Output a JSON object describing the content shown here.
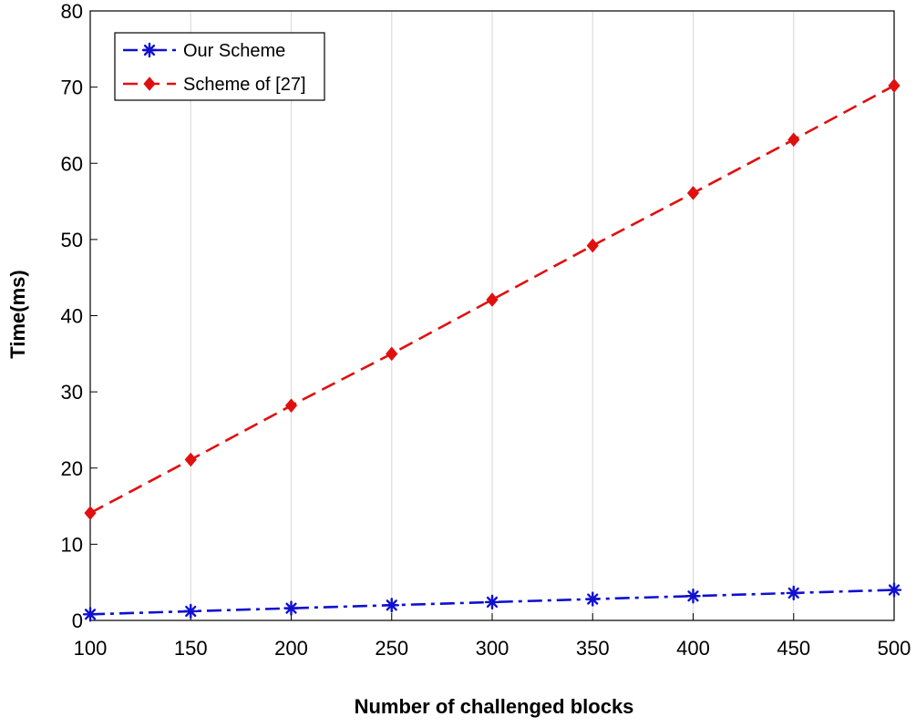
{
  "chart_data": {
    "type": "line",
    "title": "",
    "xlabel": "Number of challenged blocks",
    "ylabel": "Time(ms)",
    "x": [
      100,
      150,
      200,
      250,
      300,
      350,
      400,
      450,
      500
    ],
    "xlim": [
      100,
      500
    ],
    "ylim": [
      0,
      80
    ],
    "xticks": [
      100,
      150,
      200,
      250,
      300,
      350,
      400,
      450,
      500
    ],
    "yticks": [
      0,
      10,
      20,
      30,
      40,
      50,
      60,
      70,
      80
    ],
    "grid": "vertical",
    "legend_position": "top-left",
    "series": [
      {
        "name": "Our Scheme",
        "color": "#1010d0",
        "line_style": "dash-dot",
        "marker": "asterisk",
        "values": [
          0.8,
          1.2,
          1.6,
          2.0,
          2.4,
          2.8,
          3.2,
          3.6,
          4.0
        ]
      },
      {
        "name": "Scheme of [27]",
        "color": "#e01010",
        "line_style": "dashed",
        "marker": "diamond",
        "values": [
          14.1,
          21.1,
          28.2,
          35.0,
          42.1,
          49.2,
          56.1,
          63.1,
          70.2
        ]
      }
    ]
  }
}
